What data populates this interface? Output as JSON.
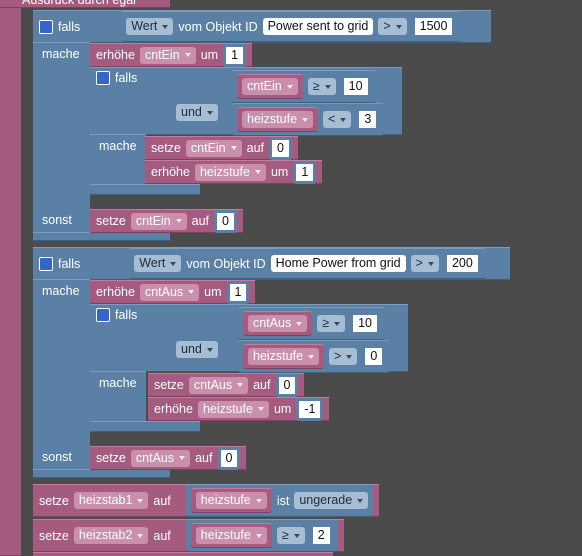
{
  "header": "Ausdruck durch egal",
  "blocks": [
    {
      "if": "falls",
      "condition": {
        "field": "Wert",
        "of": "vom Objekt ID",
        "object": "Power sent to grid",
        "op": ">",
        "value": 1500
      },
      "do": "mache",
      "increment": {
        "verb": "erhöhe",
        "var": "cntEin",
        "by": "um",
        "value": 1
      },
      "inner": {
        "if": "falls",
        "cond1": {
          "var": "cntEin",
          "op": "≥",
          "value": 10
        },
        "and": "und",
        "cond2": {
          "var": "heizstufe",
          "op": "<",
          "value": 3
        },
        "do": "mache",
        "set": {
          "verb": "setze",
          "var": "cntEin",
          "to": "auf",
          "value": 0
        },
        "increment": {
          "verb": "erhöhe",
          "var": "heizstufe",
          "by": "um",
          "value": 1
        }
      },
      "else": "sonst",
      "else_set": {
        "verb": "setze",
        "var": "cntEin",
        "to": "auf",
        "value": 0
      }
    },
    {
      "if": "falls",
      "condition": {
        "field": "Wert",
        "of": "vom Objekt ID",
        "object": "Home Power from grid",
        "op": ">",
        "value": 200
      },
      "do": "mache",
      "increment": {
        "verb": "erhöhe",
        "var": "cntAus",
        "by": "um",
        "value": 1
      },
      "inner": {
        "if": "falls",
        "cond1": {
          "var": "cntAus",
          "op": "≥",
          "value": 10
        },
        "and": "und",
        "cond2": {
          "var": "heizstufe",
          "op": ">",
          "value": 0
        },
        "do": "mache",
        "set": {
          "verb": "setze",
          "var": "cntAus",
          "to": "auf",
          "value": 0
        },
        "increment": {
          "verb": "erhöhe",
          "var": "heizstufe",
          "by": "um",
          "value": -1
        }
      },
      "else": "sonst",
      "else_set": {
        "verb": "setze",
        "var": "cntAus",
        "to": "auf",
        "value": 0
      }
    }
  ],
  "assignments": [
    {
      "verb": "setze",
      "var": "heizstab1",
      "to": "auf",
      "expr": {
        "var": "heizstufe",
        "op": "ist",
        "value": "ungerade"
      }
    },
    {
      "verb": "setze",
      "var": "heizstab2",
      "to": "auf",
      "expr": {
        "var": "heizstufe",
        "op": "≥",
        "value": 2
      }
    }
  ]
}
